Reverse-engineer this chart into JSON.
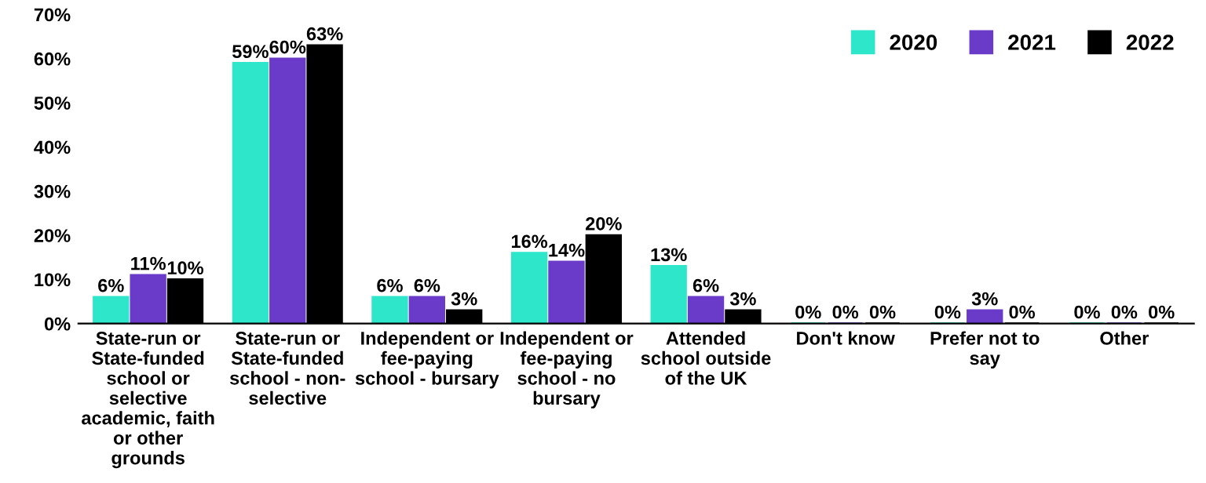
{
  "chart_data": {
    "type": "bar",
    "categories": [
      "State-run or\nState-funded\nschool or\nselective\nacademic, faith\nor other\ngrounds",
      "State-run or\nState-funded\nschool - non-\nselective",
      "Independent or\nfee-paying\nschool - bursary",
      "Independent or\nfee-paying\nschool - no\nbursary",
      "Attended\nschool outside\nof the UK",
      "Don't know",
      "Prefer not to\nsay",
      "Other"
    ],
    "series": [
      {
        "name": "2020",
        "color": "#2ee6c9",
        "values": [
          6,
          59,
          6,
          16,
          13,
          0,
          0,
          0
        ],
        "value_labels": [
          "6%",
          "59%",
          "6%",
          "16%",
          "13%",
          "0%",
          "0%",
          "0%"
        ]
      },
      {
        "name": "2021",
        "color": "#6a3bc9",
        "values": [
          11,
          60,
          6,
          14,
          6,
          0,
          3,
          0
        ],
        "value_labels": [
          "11%",
          "60%",
          "6%",
          "14%",
          "6%",
          "0%",
          "3%",
          "0%"
        ]
      },
      {
        "name": "2022",
        "color": "#000000",
        "values": [
          10,
          63,
          3,
          20,
          3,
          0,
          0,
          0
        ],
        "value_labels": [
          "10%",
          "63%",
          "3%",
          "20%",
          "3%",
          "0%",
          "0%",
          "0%"
        ]
      }
    ],
    "ylim": [
      0,
      70
    ],
    "yticks": [
      {
        "value": 0,
        "label": "0%"
      },
      {
        "value": 10,
        "label": "10%"
      },
      {
        "value": 20,
        "label": "20%"
      },
      {
        "value": 30,
        "label": "30%"
      },
      {
        "value": 40,
        "label": "40%"
      },
      {
        "value": 50,
        "label": "50%"
      },
      {
        "value": 60,
        "label": "60%"
      },
      {
        "value": 70,
        "label": "70%"
      }
    ],
    "legend": "top right",
    "grid": false
  }
}
